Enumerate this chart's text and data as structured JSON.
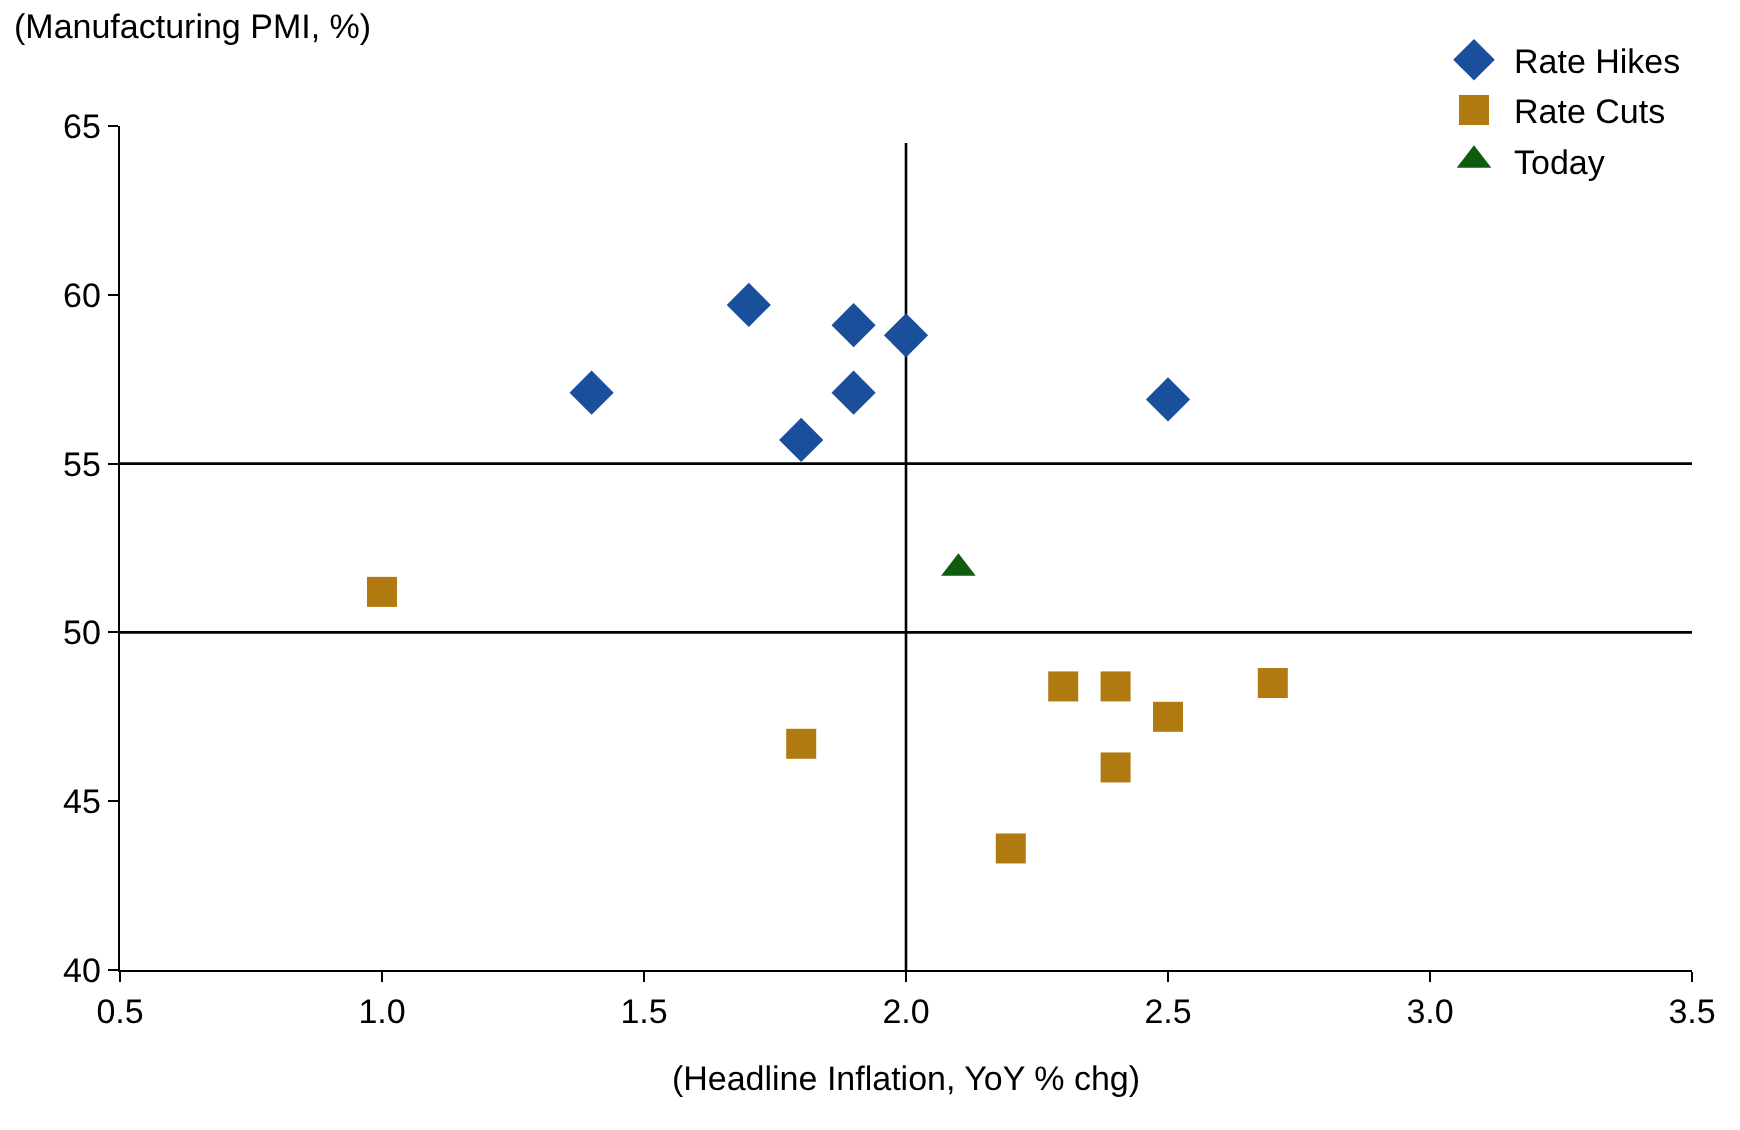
{
  "chart_data": {
    "type": "scatter",
    "xlabel": "(Headline Inflation, YoY % chg)",
    "ylabel": "(Manufacturing PMI, %)",
    "xlim": [
      0.5,
      3.5
    ],
    "xticks": [
      {
        "value": 0.5,
        "label": "0.5"
      },
      {
        "value": 1.0,
        "label": "1.0"
      },
      {
        "value": 1.5,
        "label": "1.5"
      },
      {
        "value": 2.0,
        "label": "2.0"
      },
      {
        "value": 2.5,
        "label": "2.5"
      },
      {
        "value": 3.0,
        "label": "3.0"
      },
      {
        "value": 3.5,
        "label": "3.5"
      }
    ],
    "ylim": [
      40,
      65
    ],
    "yticks": [
      40,
      45,
      50,
      55,
      60,
      65
    ],
    "grid": false,
    "legend": "top right",
    "series": [
      {
        "name": "Rate Hikes",
        "color": "#1a4f9c",
        "marker": "diamond",
        "x": [
          1.4,
          1.7,
          1.9,
          2.0,
          1.9,
          1.8,
          2.5
        ],
        "values": [
          57.1,
          59.7,
          59.1,
          58.8,
          57.1,
          55.7,
          56.9
        ]
      },
      {
        "name": "Rate Cuts",
        "color": "#b07a10",
        "marker": "square",
        "x": [
          1.0,
          1.8,
          2.2,
          2.3,
          2.4,
          2.4,
          2.5,
          2.7
        ],
        "values": [
          51.2,
          46.7,
          43.6,
          48.4,
          48.4,
          46.0,
          47.5,
          48.5
        ]
      },
      {
        "name": "Today",
        "color": "#0f5c0f",
        "marker": "triangle",
        "x": [
          2.1
        ],
        "values": [
          51.9
        ]
      }
    ],
    "ref_lines": [
      {
        "axis": "y",
        "value": 55,
        "color": "#000000"
      },
      {
        "axis": "y",
        "value": 50,
        "color": "#000000"
      },
      {
        "axis": "x",
        "value": 2.0,
        "color": "#000000"
      }
    ]
  }
}
